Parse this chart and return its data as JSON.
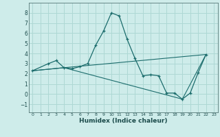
{
  "xlabel": "Humidex (Indice chaleur)",
  "background_color": "#ceecea",
  "grid_color": "#aed8d4",
  "line_color": "#1a6b6b",
  "xlim": [
    -0.5,
    23.5
  ],
  "ylim": [
    -1.8,
    9.0
  ],
  "yticks": [
    -1,
    0,
    1,
    2,
    3,
    4,
    5,
    6,
    7,
    8
  ],
  "xticks": [
    0,
    1,
    2,
    3,
    4,
    5,
    6,
    7,
    8,
    9,
    10,
    11,
    12,
    13,
    14,
    15,
    16,
    17,
    18,
    19,
    20,
    21,
    22,
    23
  ],
  "series1_x": [
    0,
    2,
    3,
    4,
    5,
    6,
    7,
    8,
    9,
    10,
    11,
    12,
    13,
    14,
    15,
    16,
    17,
    18,
    19,
    20,
    21,
    22
  ],
  "series1_y": [
    2.3,
    3.0,
    3.3,
    2.6,
    2.5,
    2.7,
    3.0,
    4.8,
    6.2,
    8.0,
    7.7,
    5.4,
    3.5,
    1.8,
    1.9,
    1.8,
    0.1,
    0.1,
    -0.5,
    0.1,
    2.1,
    3.9
  ],
  "series2_x": [
    0,
    4,
    22
  ],
  "series2_y": [
    2.3,
    2.6,
    3.9
  ],
  "series3_x": [
    0,
    4,
    19,
    22
  ],
  "series3_y": [
    2.3,
    2.6,
    -0.5,
    3.9
  ]
}
